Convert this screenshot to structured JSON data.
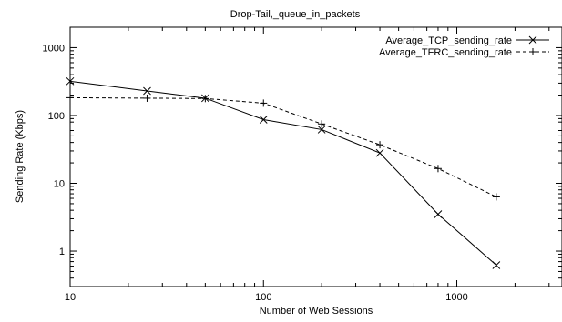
{
  "chart_data": {
    "type": "line",
    "title": "Drop-Tail,_queue_in_packets",
    "xlabel": "Number of Web Sessions",
    "ylabel": "Sending Rate (Kbps)",
    "xscale": "log",
    "yscale": "log",
    "xlim": [
      10,
      3500
    ],
    "ylim": [
      0.3,
      2000
    ],
    "x_ticks": [
      10,
      100,
      1000
    ],
    "x_tick_labels": [
      "10",
      "100",
      "1000"
    ],
    "y_ticks": [
      1,
      10,
      100,
      1000
    ],
    "y_tick_labels": [
      "1",
      "10",
      "100",
      "1000"
    ],
    "grid": false,
    "legend_position": "top-right",
    "series": [
      {
        "name": "Average_TCP_sending_rate",
        "marker": "x",
        "line_style": "solid",
        "color": "#000000",
        "x": [
          10,
          25,
          50,
          100,
          200,
          400,
          800,
          1600
        ],
        "y": [
          320,
          230,
          180,
          87,
          62,
          28,
          3.5,
          0.62
        ]
      },
      {
        "name": "Average_TFRC_sending_rate",
        "marker": "+",
        "line_style": "dashed",
        "color": "#000000",
        "x": [
          10,
          25,
          50,
          100,
          200,
          400,
          800,
          1600
        ],
        "y": [
          183,
          180,
          178,
          152,
          75,
          37,
          16.5,
          6.3
        ]
      }
    ]
  }
}
